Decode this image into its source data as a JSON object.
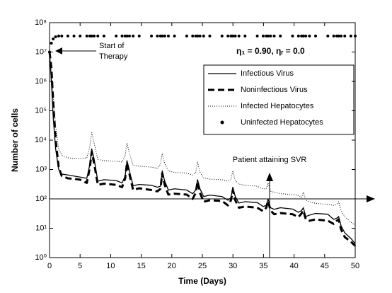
{
  "chart_data": {
    "type": "line",
    "xlabel": "Time (Days)",
    "ylabel": "Number of cells",
    "log_y": true,
    "xlim": [
      0,
      50
    ],
    "ylim": [
      1,
      100000000
    ],
    "xticks": [
      0,
      5,
      10,
      15,
      20,
      25,
      30,
      35,
      40,
      45,
      50
    ],
    "yticks": [
      {
        "value": 1,
        "label": "10⁰"
      },
      {
        "value": 10,
        "label": "10¹"
      },
      {
        "value": 100,
        "label": "10²"
      },
      {
        "value": 1000,
        "label": "10³"
      },
      {
        "value": 10000,
        "label": "10⁴"
      },
      {
        "value": 100000,
        "label": "10⁵"
      },
      {
        "value": 1000000,
        "label": "10⁶"
      },
      {
        "value": 10000000,
        "label": "10⁷"
      },
      {
        "value": 100000000,
        "label": "10⁸"
      }
    ],
    "legend": "upper right",
    "x": [
      0,
      0.3,
      0.6,
      1,
      1.5,
      2,
      3,
      4,
      5,
      6.1,
      6.6,
      6.9,
      7.3,
      7.9,
      8.9,
      10.9,
      11.87,
      12.37,
      12.67,
      13.07,
      13.67,
      14.67,
      16.67,
      17.64,
      18.14,
      18.44,
      18.84,
      19.44,
      20.44,
      22.44,
      23.41,
      23.91,
      24.21,
      24.61,
      25.21,
      26.21,
      28.21,
      29.18,
      29.68,
      29.98,
      30.38,
      30.98,
      31.98,
      33.98,
      34.95,
      35.45,
      35.75,
      36.15,
      36.75,
      37.75,
      39.75,
      40.72,
      41.22,
      41.52,
      41.92,
      42.52,
      43.52,
      45.52,
      46.49,
      46.99,
      47.29,
      47.69,
      48.29,
      49.29,
      50
    ],
    "series": [
      {
        "name": "Infectious Virus",
        "color": "#000000",
        "style": "solid",
        "values": [
          10000000,
          1000000,
          60000,
          5000,
          1000,
          700,
          650,
          600,
          550,
          500,
          1500,
          5000,
          2250,
          400,
          450,
          420,
          350,
          600,
          2000,
          900,
          280,
          310,
          290,
          250,
          270,
          900,
          400,
          200,
          220,
          200,
          150,
          200,
          450,
          220,
          120,
          135,
          120,
          90,
          110,
          250,
          120,
          72,
          80,
          75,
          55,
          60,
          100,
          50,
          44,
          50,
          45,
          35,
          40,
          50,
          25,
          28,
          32,
          30,
          20,
          22,
          25,
          12,
          7,
          4.5,
          3
        ]
      },
      {
        "name": "Noninfectious Virus",
        "color": "#000000",
        "style": "dashed",
        "values": [
          10000000,
          3000000,
          200000,
          10000,
          1200,
          600,
          500,
          480,
          450,
          350,
          1200,
          4000,
          1600,
          300,
          330,
          300,
          250,
          500,
          1700,
          700,
          200,
          230,
          200,
          180,
          220,
          750,
          300,
          140,
          150,
          140,
          100,
          160,
          380,
          160,
          80,
          90,
          85,
          60,
          90,
          200,
          90,
          50,
          55,
          50,
          38,
          50,
          85,
          40,
          30,
          33,
          30,
          24,
          32,
          40,
          20,
          18,
          20,
          18,
          14,
          18,
          20,
          9,
          5,
          3.5,
          2.5
        ]
      },
      {
        "name": "Infected Hepatocytes",
        "color": "#000000",
        "style": "dotted",
        "values": [
          8000000,
          2000000,
          300000,
          30000,
          5000,
          3000,
          2500,
          2400,
          2400,
          2500,
          6000,
          18000,
          8000,
          2200,
          2000,
          1900,
          1800,
          3000,
          8000,
          3500,
          1400,
          1300,
          1200,
          1100,
          1500,
          3500,
          1600,
          900,
          800,
          750,
          650,
          800,
          1800,
          800,
          520,
          470,
          450,
          400,
          450,
          900,
          420,
          320,
          290,
          270,
          220,
          220,
          350,
          180,
          170,
          150,
          140,
          130,
          110,
          170,
          90,
          80,
          70,
          65,
          60,
          65,
          80,
          40,
          25,
          16,
          13
        ]
      },
      {
        "name": "Uninfected Hepatocytes",
        "color": "#000000",
        "style": "points",
        "values": [
          10000000,
          20000000,
          28000000,
          33000000,
          35000000,
          35000000,
          35000000,
          35000000,
          35000000,
          35000000,
          35000000,
          35000000,
          35000000,
          35000000,
          35000000,
          35000000,
          35000000,
          35000000,
          35000000,
          35000000,
          35000000,
          35000000,
          35000000,
          35000000,
          35000000,
          35000000,
          35000000,
          35000000,
          35000000,
          35000000,
          35000000,
          35000000,
          35000000,
          35000000,
          35000000,
          35000000,
          35000000,
          35000000,
          35000000,
          35000000,
          35000000,
          35000000,
          35000000,
          35000000,
          35000000,
          35000000,
          35000000,
          35000000,
          35000000,
          35000000,
          35000000,
          35000000,
          35000000,
          35000000,
          35000000,
          35000000,
          35000000,
          35000000,
          35000000,
          35000000,
          35000000,
          35000000,
          35000000,
          35000000,
          35000000
        ]
      }
    ],
    "annotations": [
      {
        "text": [
          "Start of",
          "Therapy"
        ]
      },
      {
        "text": "η₁ = 0.90, ηᵣ = 0.0"
      },
      {
        "text": "Patient attaining SVR",
        "x": 36,
        "y": 100
      }
    ]
  }
}
